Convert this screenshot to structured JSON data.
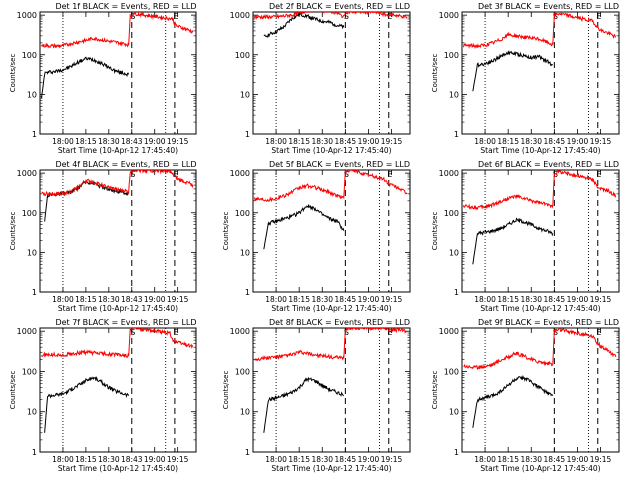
{
  "figure": {
    "background": "#ffffff",
    "series_colors": {
      "events": "#000000",
      "lld": "#ff0000"
    }
  },
  "chart_data": [
    {
      "type": "line",
      "title": "Det 1f BLACK = Events, RED = LLD",
      "ylabel": "Counts/sec",
      "xlabel": "Start Time (10-Apr-12 17:45:40)",
      "x_ticklabels": [
        "18:00",
        "18:15",
        "18:30",
        "18:43",
        "19:00",
        "19:15"
      ],
      "y_ticklabels": [
        "1",
        "10",
        "100",
        "1000"
      ],
      "yscale": "log",
      "ylim": [
        1,
        1200
      ],
      "markers": [
        {
          "label": "S",
          "style": "dashed"
        },
        {
          "label": "E",
          "style": "dashed"
        }
      ],
      "series": [
        {
          "color": "#000000",
          "x": [
            "17:46",
            "17:48",
            "17:50",
            "17:55",
            "18:00",
            "18:05",
            "18:10",
            "18:15",
            "18:20",
            "18:25",
            "18:30",
            "18:35",
            "18:40",
            "18:43"
          ],
          "values": [
            8,
            34,
            36,
            38,
            42,
            50,
            65,
            80,
            75,
            62,
            48,
            38,
            34,
            32
          ]
        },
        {
          "color": "#ff0000",
          "x": [
            "17:46",
            "17:50",
            "17:55",
            "18:00",
            "18:05",
            "18:10",
            "18:15",
            "18:20",
            "18:25",
            "18:30",
            "18:35",
            "18:40",
            "18:43",
            "18:44",
            "18:46",
            "19:12",
            "19:13",
            "19:15",
            "19:20",
            "19:25"
          ],
          "values": [
            170,
            170,
            165,
            170,
            190,
            210,
            230,
            260,
            240,
            220,
            205,
            190,
            180,
            900,
            1100,
            800,
            600,
            520,
            450,
            380
          ]
        }
      ]
    },
    {
      "type": "line",
      "title": "Det 2f BLACK = Events, RED = LLD",
      "ylabel": "",
      "xlabel": "Start Time (10-Apr-12 17:45:40)",
      "x_ticklabels": [
        "18:00",
        "18:15",
        "18:30",
        "18:45",
        "19:00",
        "19:15"
      ],
      "y_ticklabels": [
        "1",
        "10",
        "100",
        "1000"
      ],
      "yscale": "log",
      "ylim": [
        1,
        1200
      ],
      "markers": [
        {
          "label": "S",
          "style": "dashed"
        },
        {
          "label": "E",
          "style": "dashed"
        }
      ],
      "series": [
        {
          "color": "#000000",
          "x": [
            "17:52",
            "17:55",
            "18:00",
            "18:05",
            "18:10",
            "18:15",
            "18:20",
            "18:25",
            "18:30",
            "18:35",
            "18:40",
            "18:44"
          ],
          "values": [
            280,
            320,
            380,
            500,
            800,
            1050,
            950,
            800,
            700,
            650,
            550,
            500
          ]
        },
        {
          "color": "#ff0000",
          "x": [
            "17:46",
            "17:50",
            "17:55",
            "18:00",
            "18:05",
            "18:10",
            "18:15",
            "18:20",
            "18:25",
            "18:30",
            "18:35",
            "18:40",
            "18:44",
            "18:45",
            "18:48",
            "19:05",
            "19:08",
            "19:12",
            "19:15",
            "19:20",
            "19:25"
          ],
          "values": [
            900,
            900,
            900,
            900,
            950,
            1000,
            1100,
            1300,
            1350,
            1300,
            1250,
            1100,
            900,
            1200,
            1200,
            1200,
            1100,
            1000,
            1050,
            950,
            900
          ]
        }
      ]
    },
    {
      "type": "line",
      "title": "Det 3f BLACK = Events, RED = LLD",
      "ylabel": "Counts/sec",
      "xlabel": "Start Time (10-Apr-12 17:45:40)",
      "x_ticklabels": [
        "18:00",
        "18:15",
        "18:30",
        "18:45",
        "19:00",
        "19:15"
      ],
      "y_ticklabels": [
        "1",
        "10",
        "100",
        "1000"
      ],
      "yscale": "log",
      "ylim": [
        1,
        1200
      ],
      "markers": [
        {
          "label": "S",
          "style": "dashed"
        },
        {
          "label": "E",
          "style": "dashed"
        }
      ],
      "series": [
        {
          "color": "#000000",
          "x": [
            "17:52",
            "17:55",
            "18:00",
            "18:05",
            "18:10",
            "18:15",
            "18:20",
            "18:25",
            "18:30",
            "18:35",
            "18:40",
            "18:44"
          ],
          "values": [
            12,
            55,
            60,
            70,
            90,
            115,
            105,
            95,
            85,
            90,
            70,
            55
          ]
        },
        {
          "color": "#ff0000",
          "x": [
            "17:46",
            "17:50",
            "17:55",
            "18:00",
            "18:05",
            "18:10",
            "18:15",
            "18:20",
            "18:25",
            "18:30",
            "18:35",
            "18:40",
            "18:44",
            "18:45",
            "18:48",
            "19:10",
            "19:13",
            "19:15",
            "19:20",
            "19:25"
          ],
          "values": [
            170,
            170,
            165,
            175,
            200,
            240,
            320,
            300,
            280,
            260,
            250,
            210,
            180,
            1000,
            1100,
            700,
            500,
            420,
            350,
            280
          ]
        }
      ]
    },
    {
      "type": "line",
      "title": "Det 4f BLACK = Events, RED = LLD",
      "ylabel": "Counts/sec",
      "xlabel": "Start Time (10-Apr-12 17:45:40)",
      "x_ticklabels": [
        "18:00",
        "18:15",
        "18:30",
        "18:43",
        "19:00",
        "19:15"
      ],
      "y_ticklabels": [
        "1",
        "10",
        "100",
        "1000"
      ],
      "yscale": "log",
      "ylim": [
        1,
        1200
      ],
      "markers": [
        {
          "label": "S",
          "style": "dashed"
        },
        {
          "label": "E",
          "style": "dashed"
        }
      ],
      "series": [
        {
          "color": "#000000",
          "x": [
            "17:48",
            "17:50",
            "17:55",
            "18:00",
            "18:05",
            "18:10",
            "18:15",
            "18:20",
            "18:25",
            "18:30",
            "18:35",
            "18:40",
            "18:43"
          ],
          "values": [
            60,
            280,
            290,
            300,
            330,
            420,
            600,
            560,
            450,
            380,
            350,
            320,
            300
          ]
        },
        {
          "color": "#ff0000",
          "x": [
            "17:46",
            "17:50",
            "17:55",
            "18:00",
            "18:05",
            "18:10",
            "18:15",
            "18:20",
            "18:25",
            "18:30",
            "18:35",
            "18:40",
            "18:43",
            "18:44",
            "18:46",
            "19:10",
            "19:12",
            "19:15",
            "19:20",
            "19:25"
          ],
          "values": [
            300,
            300,
            300,
            310,
            340,
            440,
            650,
            600,
            500,
            430,
            390,
            360,
            340,
            1100,
            1200,
            1100,
            900,
            700,
            600,
            500
          ]
        }
      ]
    },
    {
      "type": "line",
      "title": "Det 5f BLACK = Events, RED = LLD",
      "ylabel": "Counts/sec",
      "xlabel": "Start Time (10-Apr-12 17:45:40)",
      "x_ticklabels": [
        "18:00",
        "18:15",
        "18:30",
        "18:45",
        "19:00",
        "19:15"
      ],
      "y_ticklabels": [
        "1",
        "10",
        "100",
        "1000"
      ],
      "yscale": "log",
      "ylim": [
        1,
        1200
      ],
      "markers": [
        {
          "label": "S",
          "style": "dashed"
        },
        {
          "label": "E",
          "style": "dashed"
        }
      ],
      "series": [
        {
          "color": "#000000",
          "x": [
            "17:52",
            "17:55",
            "18:00",
            "18:05",
            "18:10",
            "18:15",
            "18:20",
            "18:25",
            "18:30",
            "18:35",
            "18:40",
            "18:44"
          ],
          "values": [
            12,
            55,
            60,
            70,
            80,
            100,
            150,
            130,
            90,
            70,
            60,
            35
          ]
        },
        {
          "color": "#ff0000",
          "x": [
            "17:46",
            "17:50",
            "17:55",
            "18:00",
            "18:05",
            "18:10",
            "18:15",
            "18:20",
            "18:25",
            "18:30",
            "18:35",
            "18:40",
            "18:44",
            "18:45",
            "18:48",
            "19:10",
            "19:13",
            "19:15",
            "19:20",
            "19:25"
          ],
          "values": [
            230,
            220,
            215,
            230,
            270,
            330,
            420,
            480,
            440,
            380,
            320,
            270,
            240,
            1100,
            1200,
            700,
            550,
            500,
            420,
            300
          ]
        }
      ]
    },
    {
      "type": "line",
      "title": "Det 6f BLACK = Events, RED = LLD",
      "ylabel": "Counts/sec",
      "xlabel": "Start Time (10-Apr-12 17:45:40)",
      "x_ticklabels": [
        "18:00",
        "18:15",
        "18:30",
        "18:45",
        "19:00",
        "19:15"
      ],
      "y_ticklabels": [
        "1",
        "10",
        "100",
        "1000"
      ],
      "yscale": "log",
      "ylim": [
        1,
        1200
      ],
      "markers": [
        {
          "label": "S",
          "style": "dashed"
        },
        {
          "label": "E",
          "style": "dashed"
        }
      ],
      "series": [
        {
          "color": "#000000",
          "x": [
            "17:52",
            "17:55",
            "18:00",
            "18:05",
            "18:10",
            "18:15",
            "18:20",
            "18:25",
            "18:30",
            "18:35",
            "18:40",
            "18:44"
          ],
          "values": [
            5,
            30,
            32,
            35,
            40,
            50,
            65,
            60,
            50,
            40,
            35,
            30
          ]
        },
        {
          "color": "#ff0000",
          "x": [
            "17:46",
            "17:50",
            "17:55",
            "18:00",
            "18:05",
            "18:10",
            "18:15",
            "18:20",
            "18:25",
            "18:30",
            "18:35",
            "18:40",
            "18:44",
            "18:45",
            "18:48",
            "19:10",
            "19:13",
            "19:15",
            "19:20",
            "19:25"
          ],
          "values": [
            150,
            140,
            135,
            140,
            160,
            190,
            230,
            260,
            230,
            200,
            180,
            160,
            150,
            1000,
            1100,
            700,
            450,
            400,
            350,
            270
          ]
        }
      ]
    },
    {
      "type": "line",
      "title": "Det 7f BLACK = Events, RED = LLD",
      "ylabel": "Counts/sec",
      "xlabel": "Start Time (10-Apr-12 17:45:40)",
      "x_ticklabels": [
        "18:00",
        "18:15",
        "18:30",
        "18:43",
        "19:00",
        "19:15"
      ],
      "y_ticklabels": [
        "1",
        "10",
        "100",
        "1000"
      ],
      "yscale": "log",
      "ylim": [
        1,
        1200
      ],
      "markers": [
        {
          "label": "S",
          "style": "dashed"
        },
        {
          "label": "E",
          "style": "dashed"
        }
      ],
      "series": [
        {
          "color": "#000000",
          "x": [
            "17:48",
            "17:50",
            "17:55",
            "18:00",
            "18:05",
            "18:10",
            "18:15",
            "18:20",
            "18:25",
            "18:30",
            "18:35",
            "18:40",
            "18:43"
          ],
          "values": [
            3,
            25,
            26,
            28,
            35,
            45,
            60,
            70,
            55,
            40,
            32,
            28,
            25
          ]
        },
        {
          "color": "#ff0000",
          "x": [
            "17:46",
            "17:50",
            "17:55",
            "18:00",
            "18:05",
            "18:10",
            "18:15",
            "18:20",
            "18:25",
            "18:30",
            "18:35",
            "18:40",
            "18:43",
            "18:44",
            "18:46",
            "19:10",
            "19:12",
            "19:15",
            "19:20",
            "19:25"
          ],
          "values": [
            250,
            260,
            260,
            250,
            270,
            290,
            300,
            290,
            280,
            270,
            260,
            250,
            240,
            1100,
            1200,
            900,
            600,
            520,
            470,
            420
          ]
        }
      ]
    },
    {
      "type": "line",
      "title": "Det 8f BLACK = Events, RED = LLD",
      "ylabel": "Counts/sec",
      "xlabel": "Start Time (10-Apr-12 17:45:40)",
      "x_ticklabels": [
        "18:00",
        "18:15",
        "18:30",
        "18:45",
        "19:00",
        "19:15"
      ],
      "y_ticklabels": [
        "1",
        "10",
        "100",
        "1000"
      ],
      "yscale": "log",
      "ylim": [
        1,
        1200
      ],
      "markers": [
        {
          "label": "S",
          "style": "dashed"
        },
        {
          "label": "E",
          "style": "dashed"
        }
      ],
      "series": [
        {
          "color": "#000000",
          "x": [
            "17:52",
            "17:55",
            "18:00",
            "18:05",
            "18:10",
            "18:15",
            "18:20",
            "18:25",
            "18:30",
            "18:35",
            "18:40",
            "18:44"
          ],
          "values": [
            3,
            20,
            22,
            25,
            30,
            40,
            65,
            60,
            45,
            35,
            30,
            25
          ]
        },
        {
          "color": "#ff0000",
          "x": [
            "17:46",
            "17:50",
            "17:55",
            "18:00",
            "18:05",
            "18:10",
            "18:15",
            "18:20",
            "18:25",
            "18:30",
            "18:35",
            "18:40",
            "18:44",
            "18:45",
            "18:48",
            "19:10",
            "19:13",
            "19:15",
            "19:20",
            "19:25"
          ],
          "values": [
            200,
            210,
            220,
            230,
            240,
            260,
            300,
            280,
            260,
            240,
            230,
            220,
            210,
            1100,
            1200,
            1200,
            1100,
            1050,
            1100,
            1000
          ]
        }
      ]
    },
    {
      "type": "line",
      "title": "Det 9f BLACK = Events, RED = LLD",
      "ylabel": "Counts/sec",
      "xlabel": "Start Time (10-Apr-12 17:45:40)",
      "x_ticklabels": [
        "18:00",
        "18:15",
        "18:30",
        "18:45",
        "19:00",
        "19:15"
      ],
      "y_ticklabels": [
        "1",
        "10",
        "100",
        "1000"
      ],
      "yscale": "log",
      "ylim": [
        1,
        1200
      ],
      "markers": [
        {
          "label": "S",
          "style": "dashed"
        },
        {
          "label": "E",
          "style": "dashed"
        }
      ],
      "series": [
        {
          "color": "#000000",
          "x": [
            "17:52",
            "17:55",
            "18:00",
            "18:05",
            "18:10",
            "18:15",
            "18:20",
            "18:25",
            "18:30",
            "18:35",
            "18:40",
            "18:44"
          ],
          "values": [
            4,
            20,
            22,
            25,
            32,
            45,
            65,
            70,
            55,
            40,
            30,
            25
          ]
        },
        {
          "color": "#ff0000",
          "x": [
            "17:46",
            "17:50",
            "17:55",
            "18:00",
            "18:05",
            "18:10",
            "18:15",
            "18:20",
            "18:25",
            "18:30",
            "18:35",
            "18:40",
            "18:44",
            "18:45",
            "18:48",
            "19:10",
            "19:13",
            "19:15",
            "19:20",
            "19:25"
          ],
          "values": [
            140,
            130,
            125,
            135,
            150,
            190,
            230,
            280,
            240,
            200,
            175,
            160,
            150,
            1000,
            1100,
            750,
            500,
            420,
            330,
            230
          ]
        }
      ]
    }
  ]
}
